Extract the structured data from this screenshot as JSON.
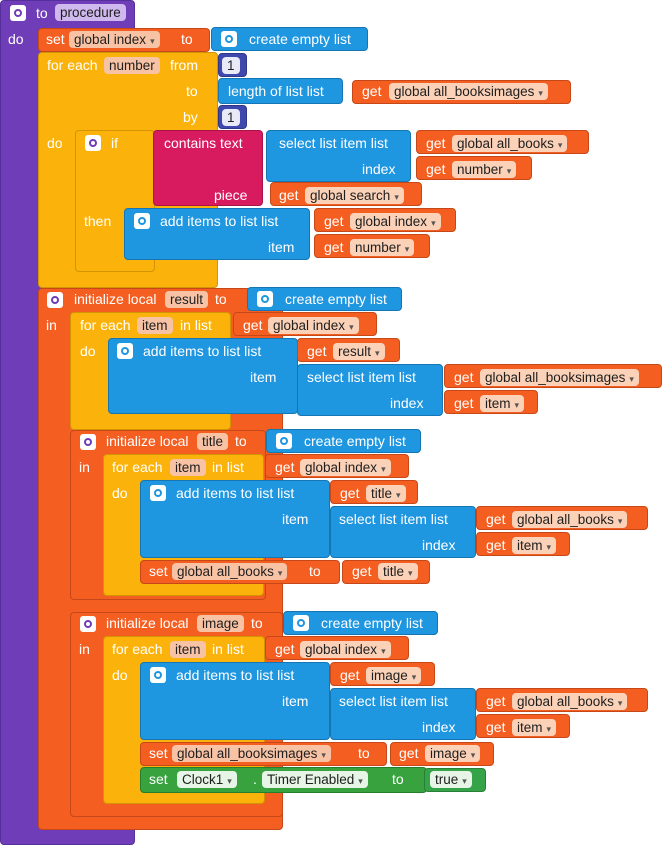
{
  "procedure": {
    "to": "to",
    "name": "procedure",
    "do": "do"
  },
  "b1": {
    "set": "set",
    "var": "global index",
    "to": "to",
    "create": "create empty list"
  },
  "loop1": {
    "for_each": "for each",
    "var": "number",
    "from": "from",
    "from_val": "1",
    "to": "to",
    "length": "length of list  list",
    "get": "get",
    "len_var": "global all_booksimages",
    "by": "by",
    "by_val": "1",
    "do": "do"
  },
  "if1": {
    "if": "if",
    "contains": "contains  text",
    "select": "select list item  list",
    "get": "get",
    "list_var": "global all_books",
    "index": "index",
    "index_var": "number",
    "piece": "piece",
    "piece_var": "global search",
    "then": "then",
    "add": "add items to list   list",
    "add_var": "global index",
    "item": "item",
    "item_var": "number"
  },
  "init1": {
    "label": "initialize local",
    "var": "result",
    "to": "to",
    "create": "create empty list",
    "in": "in",
    "for_each": "for each",
    "loop_var": "item",
    "in_list": "in list",
    "get": "get",
    "list_var": "global index",
    "do": "do",
    "add": "add items to list   list",
    "add_var": "result",
    "item": "item",
    "select": "select list item  list",
    "sel_var": "global all_booksimages",
    "index": "index",
    "index_var": "item"
  },
  "init2": {
    "label": "initialize local",
    "var": "title",
    "to": "to",
    "create": "create empty list",
    "in": "in",
    "for_each": "for each",
    "loop_var": "item",
    "in_list": "in list",
    "get": "get",
    "list_var": "global index",
    "do": "do",
    "add": "add items to list   list",
    "add_var": "title",
    "item": "item",
    "select": "select list item  list",
    "sel_var": "global all_books",
    "index": "index",
    "index_var": "item",
    "set": "set",
    "set_var": "global all_books",
    "set_to": "to",
    "set_get": "title"
  },
  "init3": {
    "label": "initialize local",
    "var": "image",
    "to": "to",
    "create": "create empty list",
    "in": "in",
    "for_each": "for each",
    "loop_var": "item",
    "in_list": "in list",
    "get": "get",
    "list_var": "global index",
    "do": "do",
    "add": "add items to list   list",
    "add_var": "image",
    "item": "item",
    "select": "select list item  list",
    "sel_var": "global all_books",
    "index": "index",
    "index_var": "item",
    "set": "set",
    "set_var": "global all_booksimages",
    "set_to": "to",
    "set_get": "image",
    "comp_set": "set",
    "component": "Clock1",
    "dot": ".",
    "property": "Timer Enabled",
    "comp_to": "to",
    "bool": "true"
  },
  "colors": {
    "procedure": "#6f3db8",
    "variables": "#f45e21",
    "control": "#fbb30b",
    "lists": "#1e96e0",
    "math": "#3f49ad",
    "text": "#d81b5f",
    "logic": "#35a448"
  },
  "icons": {
    "mutator": "gear-icon",
    "dropdown": "dropdown-arrow-icon"
  }
}
